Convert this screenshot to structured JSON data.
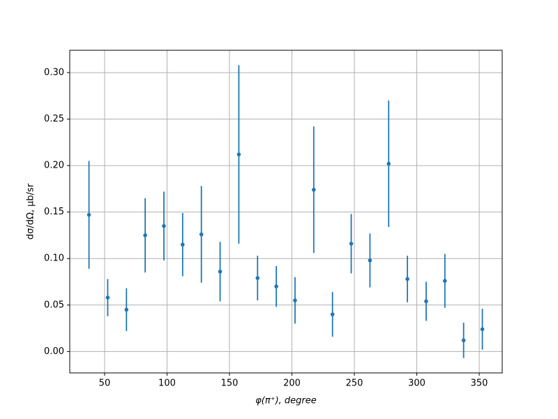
{
  "chart_data": {
    "type": "errorbar",
    "x_label": "φ(π⁺), degree",
    "y_label": "dσ/dΩ, μb/sr",
    "x": [
      37.5,
      52.5,
      67.5,
      82.5,
      97.5,
      112.5,
      127.5,
      142.5,
      157.5,
      172.5,
      187.5,
      202.5,
      217.5,
      232.5,
      247.5,
      262.5,
      277.5,
      292.5,
      307.5,
      322.5,
      337.5,
      352.5
    ],
    "values": [
      0.147,
      0.058,
      0.045,
      0.125,
      0.135,
      0.115,
      0.126,
      0.086,
      0.212,
      0.079,
      0.07,
      0.055,
      0.174,
      0.04,
      0.116,
      0.098,
      0.202,
      0.078,
      0.054,
      0.076,
      0.012,
      0.024
    ],
    "errors": [
      0.058,
      0.02,
      0.023,
      0.04,
      0.037,
      0.034,
      0.052,
      0.032,
      0.096,
      0.024,
      0.022,
      0.025,
      0.068,
      0.024,
      0.032,
      0.029,
      0.068,
      0.025,
      0.021,
      0.029,
      0.019,
      0.022
    ],
    "color": "#1f77b4",
    "xlim": [
      22.1,
      368.4
    ],
    "ylim": [
      -0.023,
      0.324
    ],
    "xticks": [
      50,
      100,
      150,
      200,
      250,
      300,
      350
    ],
    "yticks": [
      {
        "value": 0,
        "label": "0.00"
      },
      {
        "value": 0.05,
        "label": "0.05"
      },
      {
        "value": 0.1,
        "label": "0.10"
      },
      {
        "value": 0.15,
        "label": "0.15"
      },
      {
        "value": 0.2,
        "label": "0.20"
      },
      {
        "value": 0.25,
        "label": "0.25"
      },
      {
        "value": 0.3,
        "label": "0.30"
      }
    ],
    "grid": true
  }
}
